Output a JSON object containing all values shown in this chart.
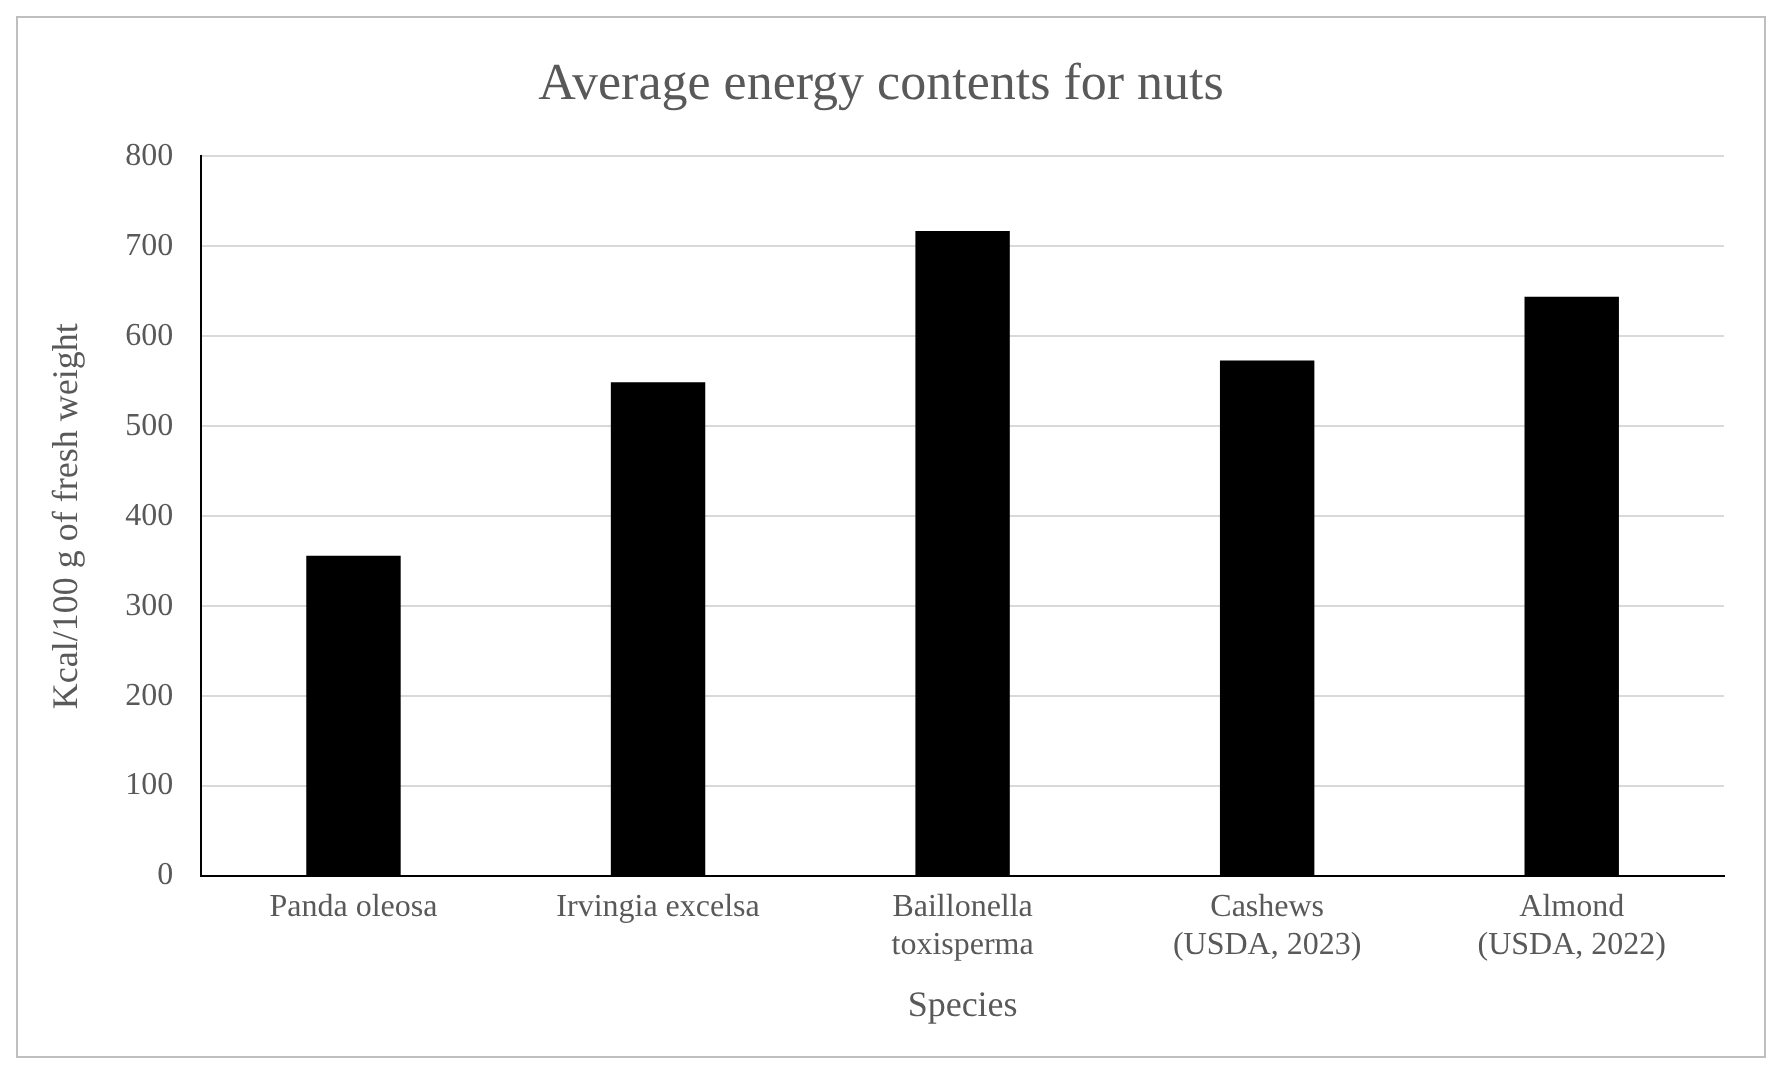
{
  "chart_data": {
    "type": "bar",
    "title": "Average energy contents for nuts",
    "xlabel": "Species",
    "ylabel": "Kcal/100 g of fresh weight",
    "categories": [
      "Panda oleosa",
      "Irvingia excelsa",
      "Baillonella toxisperma",
      "Cashews (USDA, 2023)",
      "Almond (USDA, 2022)"
    ],
    "values": [
      356,
      549,
      717,
      573,
      644
    ],
    "color": "#000000",
    "ylim": [
      0,
      800
    ],
    "yticks": [
      0,
      100,
      200,
      300,
      400,
      500,
      600,
      700,
      800
    ],
    "grid": "y"
  }
}
